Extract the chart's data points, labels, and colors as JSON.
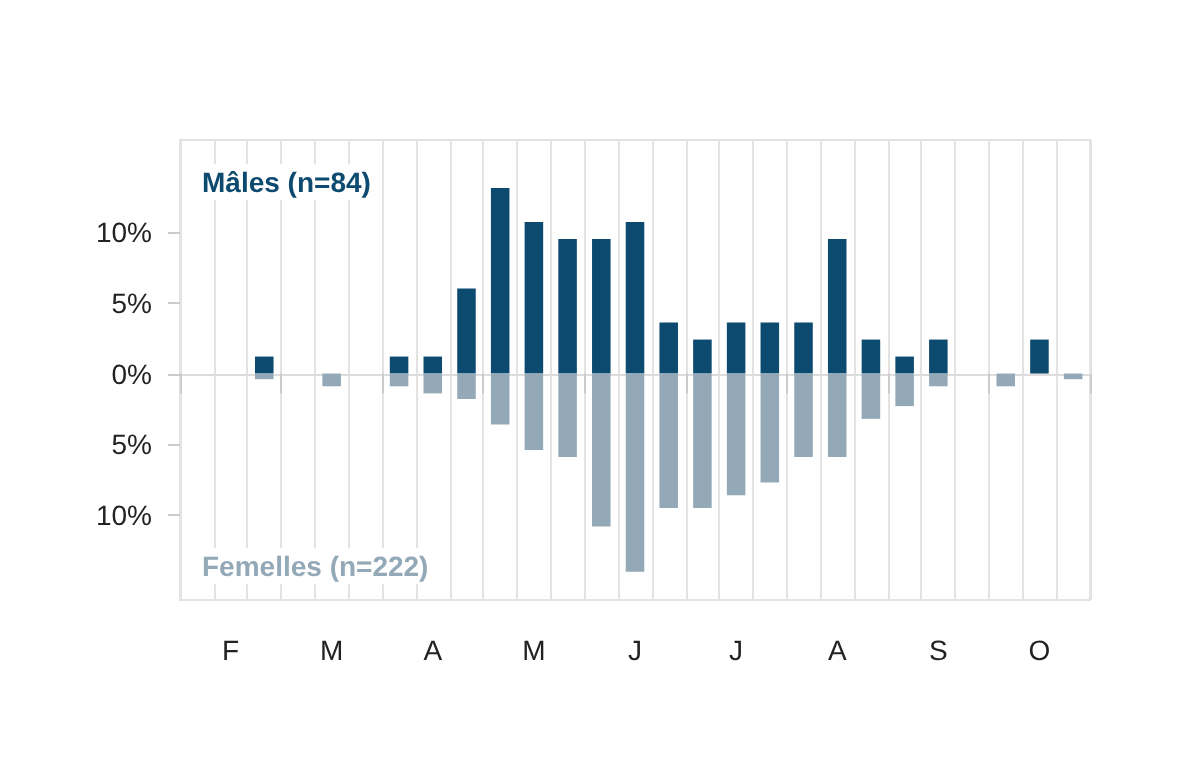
{
  "chart_data": {
    "type": "bar",
    "stacked": true,
    "legend": false,
    "grid": "x",
    "categories": [
      null,
      "F",
      null,
      null,
      "M",
      null,
      null,
      "A",
      null,
      null,
      "M",
      null,
      null,
      "J",
      null,
      null,
      "J",
      null,
      null,
      "A",
      null,
      null,
      "S",
      null,
      null,
      "O",
      null
    ],
    "series": [
      {
        "name": "Mâles (n=84)",
        "color": "#0d4a70",
        "values": [
          0,
          0,
          1.2,
          0,
          0,
          0,
          1.2,
          1.2,
          6.0,
          13.1,
          10.7,
          9.5,
          9.5,
          10.7,
          3.6,
          2.4,
          3.6,
          3.6,
          3.6,
          9.5,
          2.4,
          1.2,
          2.4,
          0,
          0,
          2.4,
          0
        ]
      },
      {
        "name": "Femelles (n=222)",
        "color": "#94a9b7",
        "values": [
          0,
          0,
          -0.4,
          0,
          -0.9,
          0,
          -0.9,
          -1.4,
          -1.8,
          -3.6,
          -5.4,
          -5.9,
          -10.8,
          -14.0,
          -9.5,
          -9.5,
          -8.6,
          -7.7,
          -5.9,
          -5.9,
          -3.2,
          -2.3,
          -0.9,
          0,
          -0.9,
          0,
          -0.4
        ]
      }
    ],
    "ylim": [
      -16,
      16.5
    ],
    "yticks": [
      {
        "value": -10,
        "label": "10%"
      },
      {
        "value": -5,
        "label": "5%"
      },
      {
        "value": 0,
        "label": "0%"
      },
      {
        "value": 5,
        "label": "5%"
      },
      {
        "value": 10,
        "label": "10%"
      }
    ]
  }
}
